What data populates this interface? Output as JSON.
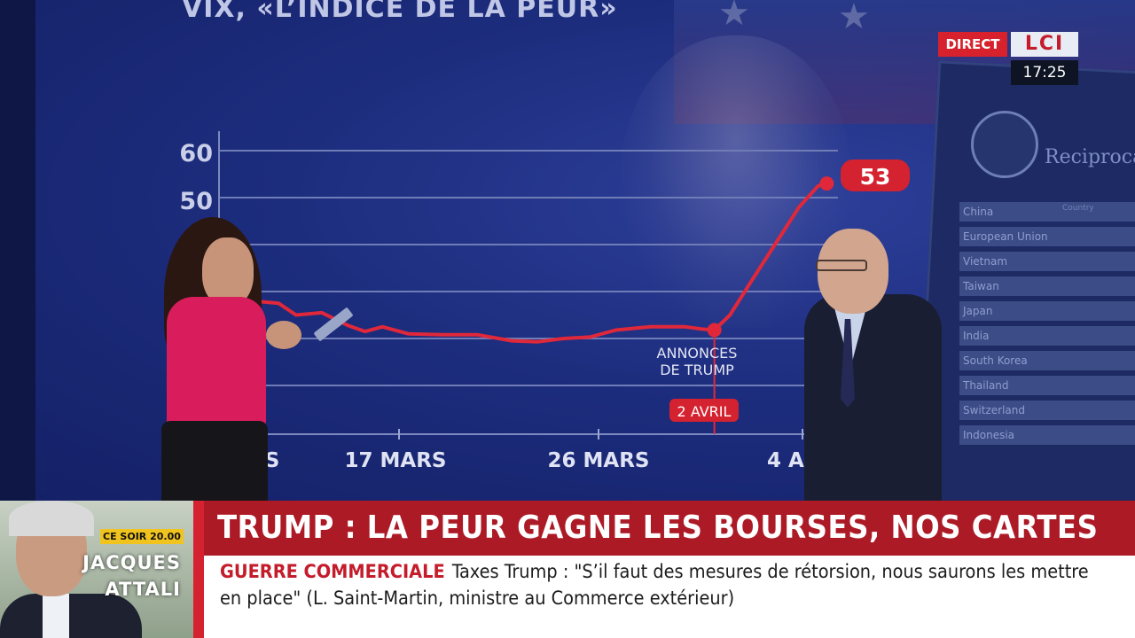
{
  "chart": {
    "title": "VIX, «L’INDICE DE LA PEUR»",
    "y_ticks": [
      "60",
      "50"
    ],
    "x_ticks": [
      "S",
      "17 MARS",
      "26 MARS",
      "4 A"
    ],
    "last_value_label": "53",
    "annotation": {
      "line1": "ANNONCES",
      "line2": "DE TRUMP",
      "date_label": "2 AVRIL"
    }
  },
  "chart_data": {
    "type": "line",
    "title": "VIX, «L’INDICE DE LA PEUR»",
    "ylim": [
      0,
      60
    ],
    "y_ticks": [
      60,
      50
    ],
    "x_ticks": [
      "17 MARS",
      "26 MARS",
      "4 A"
    ],
    "series": [
      {
        "values": [
          [
            0,
            28
          ],
          [
            1.5,
            27.5
          ],
          [
            2.5,
            25
          ],
          [
            4,
            25.5
          ],
          [
            5.5,
            22.8
          ],
          [
            6.5,
            21.5
          ],
          [
            7.5,
            22.5
          ],
          [
            9,
            21
          ],
          [
            11,
            20.8
          ],
          [
            13,
            20.8
          ],
          [
            15,
            19.5
          ],
          [
            16.5,
            19.3
          ],
          [
            18,
            20
          ],
          [
            19.5,
            20.3
          ],
          [
            21,
            21.8
          ],
          [
            23,
            22.5
          ],
          [
            25,
            22.5
          ],
          [
            26,
            22
          ],
          [
            26.7,
            21.8
          ],
          [
            27.6,
            25
          ],
          [
            28.8,
            32
          ],
          [
            30.2,
            40
          ],
          [
            31.6,
            48
          ],
          [
            32.7,
            52.5
          ],
          [
            33.2,
            53
          ]
        ]
      }
    ],
    "annotations": [
      {
        "x": 26.7,
        "y": 21.8,
        "text": "ANNONCES DE TRUMP",
        "date": "2 AVRIL"
      },
      {
        "x": 33.2,
        "y": 53,
        "text": "53"
      }
    ]
  },
  "background": {
    "order_title": "Reciprocal",
    "order_column": "Country",
    "order_countries": [
      "China",
      "European Union",
      "Vietnam",
      "Taiwan",
      "Japan",
      "India",
      "South Korea",
      "Thailand",
      "Switzerland",
      "Indonesia"
    ]
  },
  "broadcast": {
    "live_label": "DIRECT",
    "channel_logo": "LCI",
    "clock": "17:25"
  },
  "guest_box": {
    "schedule_badge": "CE SOIR 20.00",
    "name_line1": "JACQUES",
    "name_line2": "ATTALI"
  },
  "banner": {
    "headline": "TRUMP : LA PEUR GAGNE LES BOURSES, NOS CARTES",
    "ticker_category": "GUERRE COMMERCIALE",
    "ticker_text": "Taxes Trump : \"S’il faut des mesures de rétorsion, nous saurons les mettre en place\" (L. Saint-Martin, ministre au Commerce extérieur)"
  },
  "colors": {
    "accent_red": "#d7222d",
    "banner_red": "#ac1a26",
    "chart_line": "#e0283a",
    "studio_blue": "#1d2d7e",
    "schedule_yellow": "#f0c31f"
  }
}
